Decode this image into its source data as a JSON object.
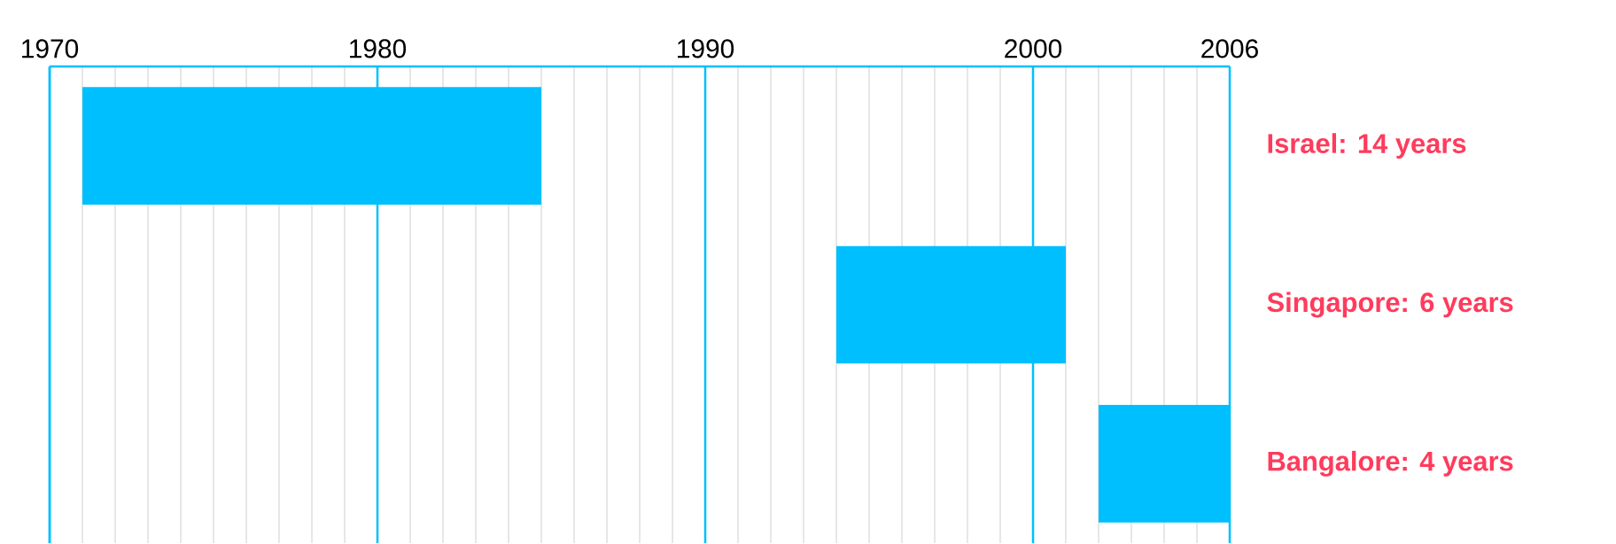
{
  "chart_data": {
    "type": "bar",
    "orientation": "horizontal",
    "categories": [
      null,
      null,
      null
    ],
    "base": [
      1971,
      1994,
      2002
    ],
    "values": [
      14,
      7,
      4
    ],
    "annotations": [
      "Israel: 14 years",
      "Singapore: 6 years",
      "Bangalore: 4 years"
    ],
    "color": "#00bfff",
    "xlim": [
      1970,
      2006
    ],
    "xticks": [
      1970,
      1980,
      1990,
      2000,
      2006
    ],
    "grid": "x",
    "tick_labels": "x"
  }
}
